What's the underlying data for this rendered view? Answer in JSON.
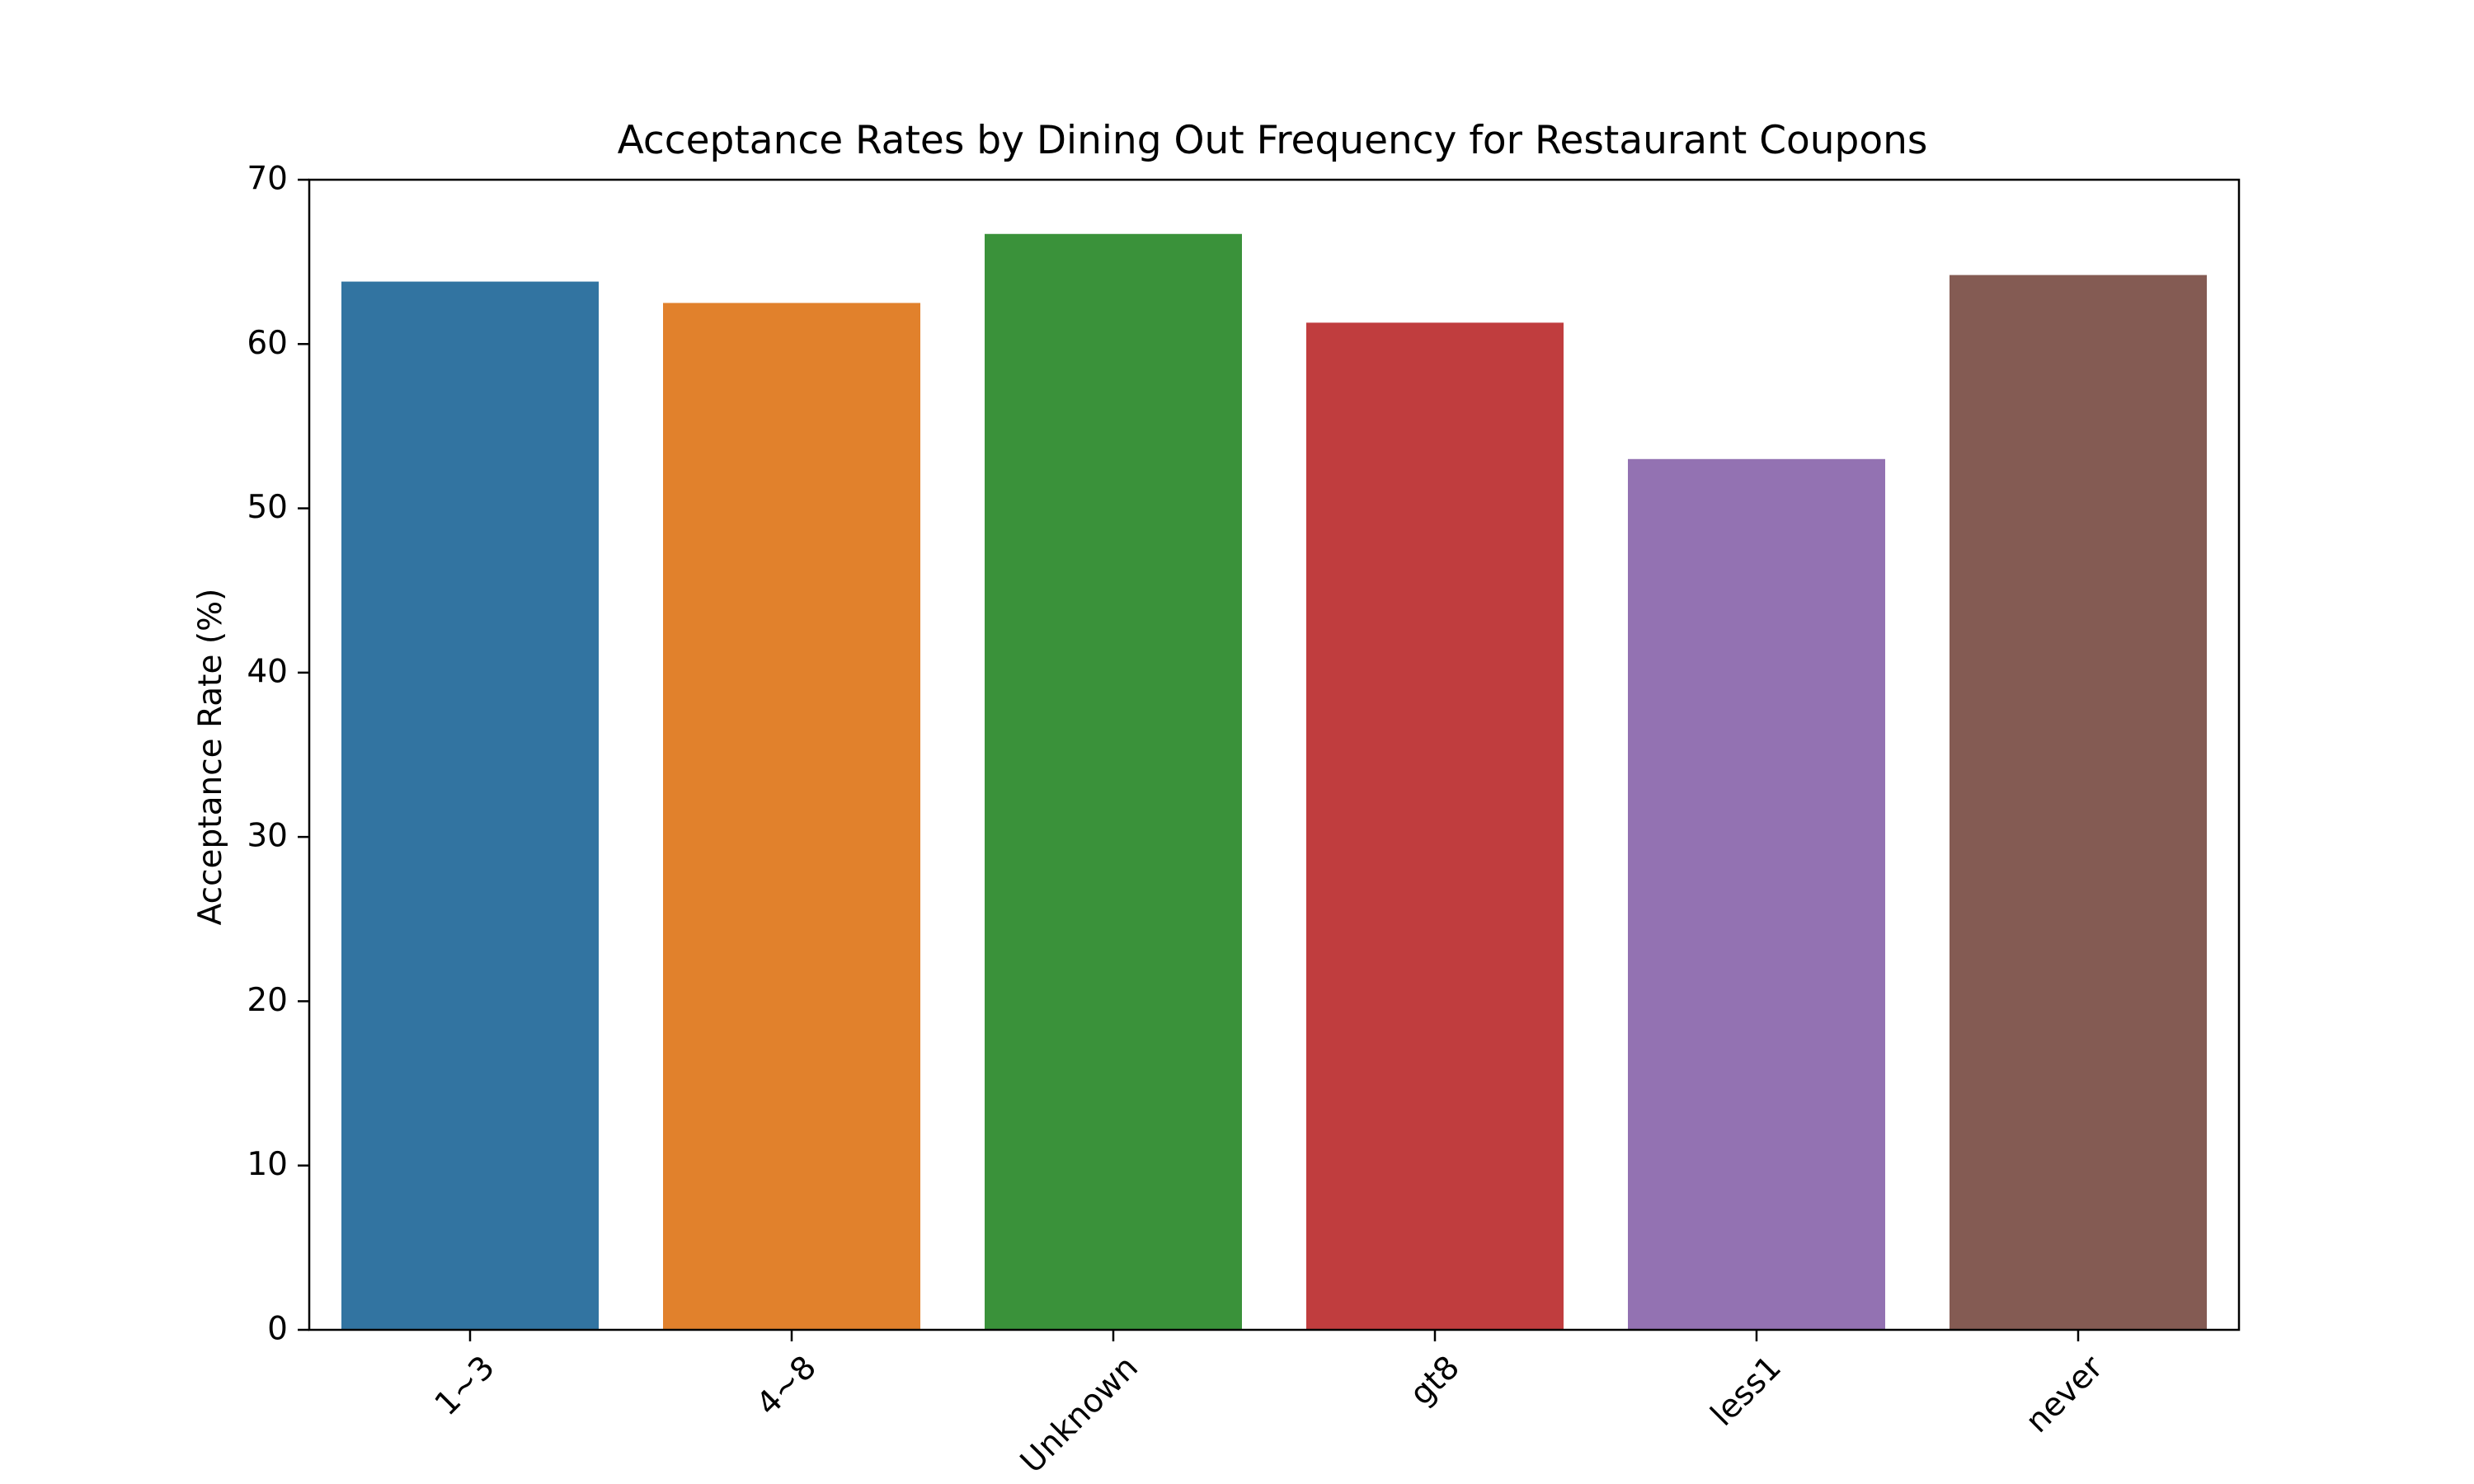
{
  "chart_data": {
    "type": "bar",
    "title": "Acceptance Rates by Dining Out Frequency for Restaurant Coupons",
    "xlabel": "",
    "ylabel": "Acceptance Rate (%)",
    "categories": [
      "1~3",
      "4~8",
      "Unknown",
      "gt8",
      "less1",
      "never"
    ],
    "values": [
      63.8,
      62.5,
      66.7,
      61.3,
      53.0,
      64.2
    ],
    "colors": [
      "#3274a1",
      "#e1812c",
      "#3a923a",
      "#c03d3e",
      "#9372b2",
      "#845b53"
    ],
    "ylim": [
      0,
      70
    ],
    "yticks": [
      0,
      10,
      20,
      30,
      40,
      50,
      60,
      70
    ],
    "grid": false,
    "legend": "none"
  }
}
